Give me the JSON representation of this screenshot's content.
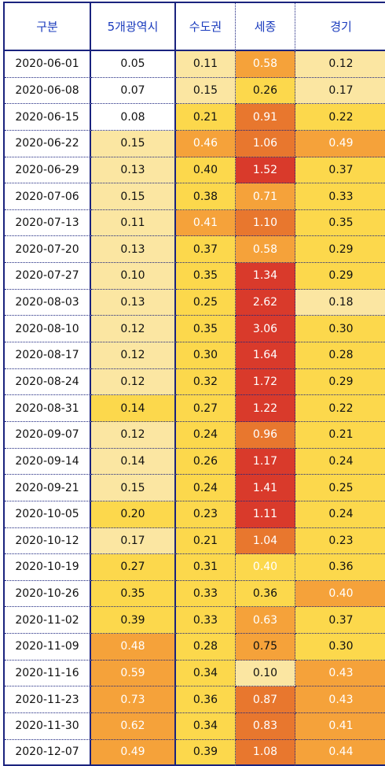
{
  "headers": [
    "구분",
    "5개광역시",
    "수도권",
    "세종",
    "경기"
  ],
  "rows": [
    {
      "date": "2020-06-01",
      "v": [
        "0.05",
        "0.11",
        "0.58",
        "0.12"
      ],
      "bg": [
        "#ffffff",
        "#fbe6a2",
        "#f5a23a",
        "#fbe6a2"
      ],
      "light": [
        false,
        false,
        true,
        false
      ]
    },
    {
      "date": "2020-06-08",
      "v": [
        "0.07",
        "0.15",
        "0.26",
        "0.17"
      ],
      "bg": [
        "#ffffff",
        "#fbe6a2",
        "#fcd84c",
        "#fbe6a2"
      ],
      "light": [
        false,
        false,
        false,
        false
      ]
    },
    {
      "date": "2020-06-15",
      "v": [
        "0.08",
        "0.21",
        "0.91",
        "0.22"
      ],
      "bg": [
        "#ffffff",
        "#fcd84c",
        "#e8772e",
        "#fcd84c"
      ],
      "light": [
        false,
        false,
        true,
        false
      ]
    },
    {
      "date": "2020-06-22",
      "v": [
        "0.15",
        "0.46",
        "1.06",
        "0.49"
      ],
      "bg": [
        "#fbe6a2",
        "#f5a23a",
        "#e8772e",
        "#f5a23a"
      ],
      "light": [
        false,
        true,
        true,
        true
      ]
    },
    {
      "date": "2020-06-29",
      "v": [
        "0.13",
        "0.40",
        "1.52",
        "0.37"
      ],
      "bg": [
        "#fbe6a2",
        "#fcd84c",
        "#d93a2b",
        "#fcd84c"
      ],
      "light": [
        false,
        false,
        true,
        false
      ]
    },
    {
      "date": "2020-07-06",
      "v": [
        "0.15",
        "0.38",
        "0.71",
        "0.33"
      ],
      "bg": [
        "#fbe6a2",
        "#fcd84c",
        "#f5a23a",
        "#fcd84c"
      ],
      "light": [
        false,
        false,
        true,
        false
      ]
    },
    {
      "date": "2020-07-13",
      "v": [
        "0.11",
        "0.41",
        "1.10",
        "0.35"
      ],
      "bg": [
        "#fbe6a2",
        "#f5a23a",
        "#e8772e",
        "#fcd84c"
      ],
      "light": [
        false,
        true,
        true,
        false
      ]
    },
    {
      "date": "2020-07-20",
      "v": [
        "0.13",
        "0.37",
        "0.58",
        "0.29"
      ],
      "bg": [
        "#fbe6a2",
        "#fcd84c",
        "#f5a23a",
        "#fcd84c"
      ],
      "light": [
        false,
        false,
        true,
        false
      ]
    },
    {
      "date": "2020-07-27",
      "v": [
        "0.10",
        "0.35",
        "1.34",
        "0.29"
      ],
      "bg": [
        "#fbe6a2",
        "#fcd84c",
        "#d93a2b",
        "#fcd84c"
      ],
      "light": [
        false,
        false,
        true,
        false
      ]
    },
    {
      "date": "2020-08-03",
      "v": [
        "0.13",
        "0.25",
        "2.62",
        "0.18"
      ],
      "bg": [
        "#fbe6a2",
        "#fcd84c",
        "#d93a2b",
        "#fbe6a2"
      ],
      "light": [
        false,
        false,
        true,
        false
      ]
    },
    {
      "date": "2020-08-10",
      "v": [
        "0.12",
        "0.35",
        "3.06",
        "0.30"
      ],
      "bg": [
        "#fbe6a2",
        "#fcd84c",
        "#d93a2b",
        "#fcd84c"
      ],
      "light": [
        false,
        false,
        true,
        false
      ]
    },
    {
      "date": "2020-08-17",
      "v": [
        "0.12",
        "0.30",
        "1.64",
        "0.28"
      ],
      "bg": [
        "#fbe6a2",
        "#fcd84c",
        "#d93a2b",
        "#fcd84c"
      ],
      "light": [
        false,
        false,
        true,
        false
      ]
    },
    {
      "date": "2020-08-24",
      "v": [
        "0.12",
        "0.32",
        "1.72",
        "0.29"
      ],
      "bg": [
        "#fbe6a2",
        "#fcd84c",
        "#d93a2b",
        "#fcd84c"
      ],
      "light": [
        false,
        false,
        true,
        false
      ]
    },
    {
      "date": "2020-08-31",
      "v": [
        "0.14",
        "0.27",
        "1.22",
        "0.22"
      ],
      "bg": [
        "#fcd84c",
        "#fcd84c",
        "#d93a2b",
        "#fcd84c"
      ],
      "light": [
        false,
        false,
        true,
        false
      ]
    },
    {
      "date": "2020-09-07",
      "v": [
        "0.12",
        "0.24",
        "0.96",
        "0.21"
      ],
      "bg": [
        "#fbe6a2",
        "#fcd84c",
        "#e8772e",
        "#fcd84c"
      ],
      "light": [
        false,
        false,
        true,
        false
      ]
    },
    {
      "date": "2020-09-14",
      "v": [
        "0.14",
        "0.26",
        "1.17",
        "0.24"
      ],
      "bg": [
        "#fbe6a2",
        "#fcd84c",
        "#d93a2b",
        "#fcd84c"
      ],
      "light": [
        false,
        false,
        true,
        false
      ]
    },
    {
      "date": "2020-09-21",
      "v": [
        "0.15",
        "0.24",
        "1.41",
        "0.25"
      ],
      "bg": [
        "#fbe6a2",
        "#fcd84c",
        "#d93a2b",
        "#fcd84c"
      ],
      "light": [
        false,
        false,
        true,
        false
      ]
    },
    {
      "date": "2020-10-05",
      "v": [
        "0.20",
        "0.23",
        "1.11",
        "0.24"
      ],
      "bg": [
        "#fcd84c",
        "#fcd84c",
        "#d93a2b",
        "#fcd84c"
      ],
      "light": [
        false,
        false,
        true,
        false
      ]
    },
    {
      "date": "2020-10-12",
      "v": [
        "0.17",
        "0.21",
        "1.04",
        "0.23"
      ],
      "bg": [
        "#fbe6a2",
        "#fcd84c",
        "#e8772e",
        "#fcd84c"
      ],
      "light": [
        false,
        false,
        true,
        false
      ]
    },
    {
      "date": "2020-10-19",
      "v": [
        "0.27",
        "0.31",
        "0.40",
        "0.36"
      ],
      "bg": [
        "#fcd84c",
        "#fcd84c",
        "#fcd84c",
        "#fcd84c"
      ],
      "light": [
        false,
        false,
        true,
        false
      ]
    },
    {
      "date": "2020-10-26",
      "v": [
        "0.35",
        "0.33",
        "0.36",
        "0.40"
      ],
      "bg": [
        "#fcd84c",
        "#fcd84c",
        "#fcd84c",
        "#f5a23a"
      ],
      "light": [
        false,
        false,
        false,
        true
      ]
    },
    {
      "date": "2020-11-02",
      "v": [
        "0.39",
        "0.33",
        "0.63",
        "0.37"
      ],
      "bg": [
        "#fcd84c",
        "#fcd84c",
        "#f5a23a",
        "#fcd84c"
      ],
      "light": [
        false,
        false,
        true,
        false
      ]
    },
    {
      "date": "2020-11-09",
      "v": [
        "0.48",
        "0.28",
        "0.75",
        "0.30"
      ],
      "bg": [
        "#f5a23a",
        "#fcd84c",
        "#f5a23a",
        "#fcd84c"
      ],
      "light": [
        true,
        false,
        false,
        false
      ]
    },
    {
      "date": "2020-11-16",
      "v": [
        "0.59",
        "0.34",
        "0.10",
        "0.43"
      ],
      "bg": [
        "#f5a23a",
        "#fcd84c",
        "#fbe6a2",
        "#f5a23a"
      ],
      "light": [
        true,
        false,
        false,
        true
      ]
    },
    {
      "date": "2020-11-23",
      "v": [
        "0.73",
        "0.36",
        "0.87",
        "0.43"
      ],
      "bg": [
        "#f5a23a",
        "#fcd84c",
        "#e8772e",
        "#f5a23a"
      ],
      "light": [
        true,
        false,
        true,
        true
      ]
    },
    {
      "date": "2020-11-30",
      "v": [
        "0.62",
        "0.34",
        "0.83",
        "0.41"
      ],
      "bg": [
        "#f5a23a",
        "#fcd84c",
        "#e8772e",
        "#f5a23a"
      ],
      "light": [
        true,
        false,
        true,
        true
      ]
    },
    {
      "date": "2020-12-07",
      "v": [
        "0.49",
        "0.39",
        "1.08",
        "0.44"
      ],
      "bg": [
        "#f5a23a",
        "#fcd84c",
        "#e8772e",
        "#f5a23a"
      ],
      "light": [
        true,
        false,
        true,
        true
      ]
    }
  ]
}
